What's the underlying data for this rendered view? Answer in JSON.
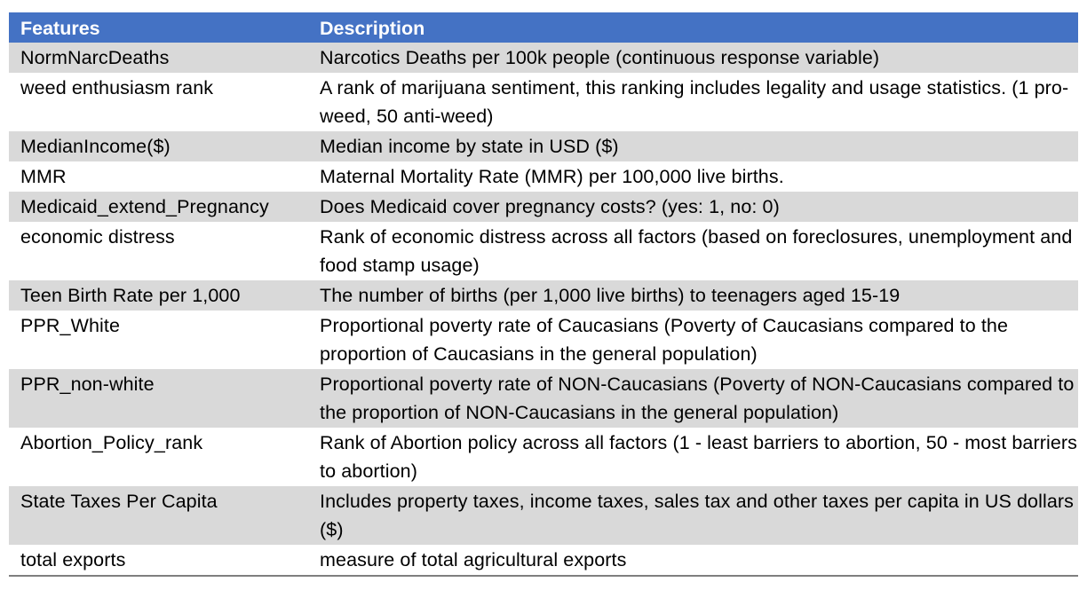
{
  "table": {
    "headers": [
      "Features",
      "Description"
    ],
    "rows": [
      {
        "feature": "NormNarcDeaths",
        "description": "Narcotics Deaths per 100k people (continuous response variable)"
      },
      {
        "feature": "weed enthusiasm rank",
        "description": "A rank of marijuana sentiment, this ranking includes legality and usage statistics. (1 pro-weed, 50 anti-weed)"
      },
      {
        "feature": "MedianIncome($)",
        "description": "Median income by state in USD ($)"
      },
      {
        "feature": "MMR",
        "description": "Maternal Mortality Rate (MMR) per 100,000 live births."
      },
      {
        "feature": "Medicaid_extend_Pregnancy",
        "description": "Does Medicaid cover pregnancy costs? (yes: 1, no: 0)"
      },
      {
        "feature": "economic distress",
        "description": "Rank of economic distress across all factors (based on foreclosures, unemployment and food stamp usage)"
      },
      {
        "feature": "Teen Birth Rate per 1,000",
        "description": "The number of births (per 1,000 live births) to teenagers aged 15-19"
      },
      {
        "feature": "PPR_White",
        "description": "Proportional poverty rate of Caucasians (Poverty of Caucasians compared to the proportion of Caucasians in the general population)"
      },
      {
        "feature": "PPR_non-white",
        "description": "Proportional poverty rate of NON-Caucasians (Poverty of NON-Caucasians compared to the proportion of NON-Caucasians in the general population)"
      },
      {
        "feature": "Abortion_Policy_rank",
        "description": "Rank of Abortion policy across all factors (1 - least barriers to abortion, 50 - most barriers to abortion)"
      },
      {
        "feature": "State Taxes Per Capita",
        "description": "Includes property taxes, income taxes, sales tax and other taxes per capita in US dollars ($)"
      },
      {
        "feature": "total exports",
        "description": "measure of total agricultural exports"
      }
    ]
  },
  "colors": {
    "header_bg": "#4472c4",
    "header_text": "#ffffff",
    "band_gray": "#d9d9d9",
    "band_white": "#ffffff"
  }
}
